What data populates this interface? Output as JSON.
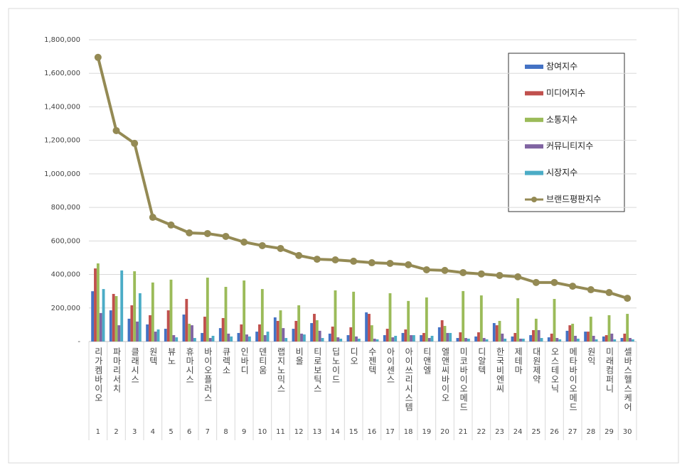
{
  "chart_data": {
    "type": "bar",
    "categories": [
      "리가켐바이오",
      "파마리서치",
      "클래시스",
      "원텍",
      "뷰노",
      "휴마시스",
      "바이오플러스",
      "큐렉소",
      "인바디",
      "덴티움",
      "랩지노믹스",
      "비올",
      "티로보틱스",
      "딥노이드",
      "디오",
      "수젠텍",
      "아이센스",
      "아이쓰리시스템",
      "티앤엘",
      "엘앤씨바이오",
      "미코바이오메드",
      "디알텍",
      "한국비엔씨",
      "제테마",
      "대원제약",
      "오스테오닉",
      "메타바이오메드",
      "원익",
      "미래컴퍼니",
      "셀바스헬스케어"
    ],
    "category_numbers": [
      1,
      2,
      3,
      4,
      5,
      6,
      7,
      8,
      9,
      10,
      11,
      12,
      13,
      14,
      15,
      16,
      17,
      18,
      19,
      20,
      21,
      22,
      23,
      24,
      25,
      26,
      27,
      28,
      29,
      30
    ],
    "series": [
      {
        "name": "참여지수",
        "color": "#4472c4",
        "values": [
          300000,
          186000,
          136000,
          102000,
          76000,
          161000,
          51000,
          80000,
          51000,
          59000,
          144000,
          76000,
          110000,
          47000,
          38000,
          174000,
          38000,
          51000,
          38000,
          85000,
          21000,
          30000,
          110000,
          30000,
          38000,
          25000,
          64000,
          59000,
          30000,
          21000
        ]
      },
      {
        "name": "미디어지수",
        "color": "#c0504d",
        "values": [
          436000,
          284000,
          216000,
          157000,
          186000,
          254000,
          148000,
          140000,
          102000,
          102000,
          123000,
          123000,
          165000,
          89000,
          85000,
          165000,
          76000,
          72000,
          51000,
          127000,
          55000,
          55000,
          97000,
          51000,
          68000,
          47000,
          97000,
          59000,
          38000,
          47000
        ]
      },
      {
        "name": "소통지수",
        "color": "#9bbb59",
        "values": [
          466000,
          271000,
          419000,
          352000,
          369000,
          106000,
          381000,
          326000,
          364000,
          313000,
          186000,
          216000,
          127000,
          305000,
          297000,
          97000,
          288000,
          242000,
          263000,
          93000,
          301000,
          275000,
          123000,
          258000,
          136000,
          254000,
          106000,
          148000,
          157000,
          165000
        ]
      },
      {
        "name": "커뮤니티지수",
        "color": "#8064a2",
        "values": [
          170000,
          97000,
          119000,
          59000,
          38000,
          97000,
          21000,
          47000,
          42000,
          38000,
          80000,
          47000,
          64000,
          25000,
          30000,
          17000,
          25000,
          38000,
          21000,
          51000,
          21000,
          21000,
          47000,
          17000,
          68000,
          21000,
          34000,
          34000,
          47000,
          21000
        ]
      },
      {
        "name": "시장지수",
        "color": "#4bacc6",
        "values": [
          313000,
          424000,
          288000,
          72000,
          25000,
          21000,
          34000,
          30000,
          30000,
          59000,
          21000,
          42000,
          21000,
          17000,
          17000,
          13000,
          34000,
          38000,
          34000,
          51000,
          17000,
          13000,
          17000,
          17000,
          21000,
          13000,
          17000,
          13000,
          13000,
          13000
        ]
      },
      {
        "name": "브랜드평판지수",
        "color": "#948a54",
        "type": "line",
        "values": [
          1695000,
          1258000,
          1182000,
          741000,
          695000,
          648000,
          644000,
          627000,
          593000,
          572000,
          555000,
          513000,
          491000,
          487000,
          479000,
          470000,
          466000,
          458000,
          428000,
          424000,
          411000,
          403000,
          394000,
          386000,
          352000,
          352000,
          330000,
          309000,
          292000,
          258000
        ]
      }
    ],
    "ylim": [
      0,
      1800000
    ],
    "yticks": [
      {
        "value": 0,
        "label": "-"
      },
      {
        "value": 200000,
        "label": "200,000"
      },
      {
        "value": 400000,
        "label": "400,000"
      },
      {
        "value": 600000,
        "label": "600,000"
      },
      {
        "value": 800000,
        "label": "800,000"
      },
      {
        "value": 1000000,
        "label": "1,000,000"
      },
      {
        "value": 1200000,
        "label": "1,200,000"
      },
      {
        "value": 1400000,
        "label": "1,400,000"
      },
      {
        "value": 1600000,
        "label": "1,600,000"
      },
      {
        "value": 1800000,
        "label": "1,800,000"
      }
    ],
    "grid": true,
    "legend": "upper right"
  }
}
